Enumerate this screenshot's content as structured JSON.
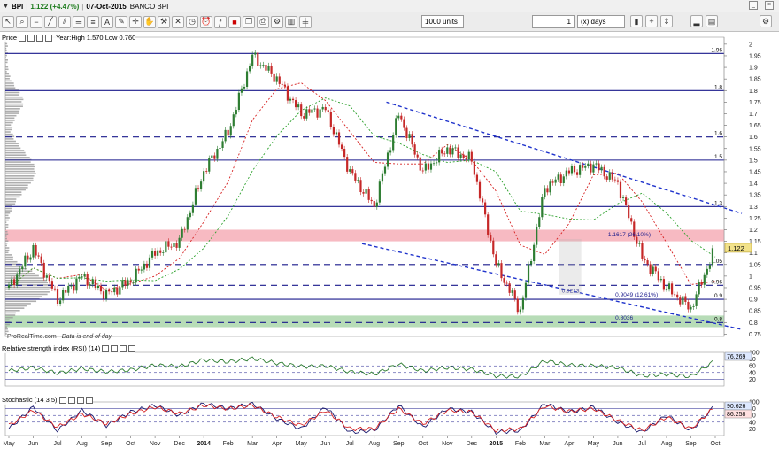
{
  "header": {
    "symbol": "BPI",
    "price_change": "1.122 (+4.47%)",
    "date": "07-Oct-2015",
    "instrument_name": "BANCO BPI",
    "units": "1000 units",
    "period_value": "1",
    "period_unit": "(x) days"
  },
  "panels": {
    "price": {
      "label": "Price",
      "info": "Year:High 1.570 Low 0.760"
    },
    "rsi": {
      "label": "Relative strength index (RSI) (14)"
    },
    "stoch": {
      "label": "Stochastic (14 3 5)"
    }
  },
  "footer": {
    "brand": "ProRealTime.com",
    "note": "Data is end of day"
  },
  "colors": {
    "up": "#2e7d32",
    "down": "#c62828",
    "hline": "#1a1a8c",
    "trend": "#1f33cc",
    "fibo_band": "#f4a3ad",
    "support_band": "#9fd09f",
    "ma_red": "#d62020",
    "ma_green": "#2aa02a",
    "stoch_k": "#1a1a6e",
    "stoch_d": "#d62020"
  },
  "chart_data": [
    {
      "type": "line",
      "name": "price",
      "x": [
        "2013-05-01",
        "2013-06-01",
        "2013-07-01",
        "2013-08-01",
        "2013-09-01",
        "2013-10-01",
        "2013-11-01",
        "2013-12-01",
        "2014-01-01",
        "2014-02-01",
        "2014-03-01",
        "2014-04-01",
        "2014-05-01",
        "2014-06-01",
        "2014-07-01",
        "2014-08-01",
        "2014-09-01",
        "2014-10-01",
        "2014-11-01",
        "2014-12-01",
        "2015-01-01",
        "2015-02-01",
        "2015-03-01",
        "2015-04-01",
        "2015-05-01",
        "2015-06-01",
        "2015-07-01",
        "2015-08-01",
        "2015-09-01",
        "2015-10-07"
      ],
      "y": [
        0.95,
        1.12,
        0.9,
        1.0,
        0.92,
        0.98,
        1.1,
        1.15,
        1.45,
        1.62,
        1.95,
        1.85,
        1.7,
        1.72,
        1.45,
        1.3,
        1.7,
        1.45,
        1.55,
        1.5,
        1.05,
        0.85,
        1.38,
        1.45,
        1.48,
        1.4,
        1.08,
        0.95,
        0.86,
        1.122
      ],
      "price_axis_ticks": [
        0.75,
        0.8,
        0.85,
        0.9,
        0.95,
        1.0,
        1.05,
        1.1,
        1.15,
        1.2,
        1.25,
        1.3,
        1.35,
        1.4,
        1.45,
        1.5,
        1.55,
        1.6,
        1.65,
        1.7,
        1.75,
        1.8,
        1.85,
        1.9,
        1.95,
        2.0
      ],
      "ylim": [
        0.74,
        2.03
      ],
      "last_price": "1.122",
      "horizontal_levels": [
        {
          "value": 1.96,
          "label": "1.96",
          "style": "solid"
        },
        {
          "value": 1.8,
          "label": "1.8",
          "style": "solid"
        },
        {
          "value": 1.6,
          "label": "1.6",
          "style": "dashed"
        },
        {
          "value": 1.5,
          "label": "1.5",
          "style": "solid"
        },
        {
          "value": 1.3,
          "label": "1.3",
          "style": "solid"
        },
        {
          "value": 1.05,
          "label": "1.05",
          "style": "dashed"
        },
        {
          "value": 0.96,
          "label": "0.96",
          "style": "dashed"
        },
        {
          "value": 0.9,
          "label": "0.9",
          "style": "solid"
        },
        {
          "value": 0.8,
          "label": "0.8",
          "style": "dashed"
        }
      ],
      "zones": [
        {
          "from": 1.15,
          "to": 1.2,
          "color": "fibo_band"
        },
        {
          "from": 0.78,
          "to": 0.83,
          "color": "support_band"
        }
      ],
      "annotations": [
        {
          "text": "1.1617 (26.10%)"
        },
        {
          "text": "0.9213"
        },
        {
          "text": "0.9049 (12.61%)"
        },
        {
          "text": "0.8036"
        }
      ],
      "x_tick_labels": [
        "May",
        "Jun",
        "Jul",
        "Aug",
        "Sep",
        "Oct",
        "Nov",
        "Dec",
        "2014",
        "Feb",
        "Mar",
        "Apr",
        "May",
        "Jun",
        "Jul",
        "Aug",
        "Sep",
        "Oct",
        "Nov",
        "Dec",
        "2015",
        "Feb",
        "Mar",
        "Apr",
        "May",
        "Jun",
        "Jul",
        "Aug",
        "Sep",
        "Oct"
      ]
    },
    {
      "type": "line",
      "name": "RSI (14)",
      "ylim": [
        0,
        100
      ],
      "ticks": [
        20,
        40,
        60,
        80,
        100
      ],
      "last_value": "76.269",
      "values": [
        45,
        55,
        38,
        52,
        42,
        48,
        62,
        58,
        78,
        72,
        82,
        68,
        58,
        60,
        42,
        35,
        65,
        45,
        55,
        50,
        30,
        28,
        75,
        62,
        60,
        55,
        30,
        35,
        28,
        76
      ]
    },
    {
      "type": "line",
      "name": "Stochastic (14 3 5)",
      "ylim": [
        0,
        100
      ],
      "ticks": [
        20,
        40,
        60,
        80,
        100
      ],
      "last_values": [
        "90.626",
        "86.258"
      ],
      "k": [
        20,
        85,
        15,
        75,
        30,
        70,
        90,
        60,
        95,
        80,
        95,
        50,
        20,
        85,
        10,
        15,
        90,
        25,
        80,
        70,
        10,
        15,
        95,
        70,
        85,
        40,
        10,
        60,
        15,
        90
      ],
      "d": [
        30,
        75,
        25,
        65,
        35,
        65,
        85,
        65,
        90,
        80,
        90,
        55,
        30,
        75,
        20,
        20,
        80,
        35,
        75,
        70,
        15,
        20,
        88,
        72,
        80,
        45,
        15,
        55,
        20,
        86
      ]
    }
  ]
}
